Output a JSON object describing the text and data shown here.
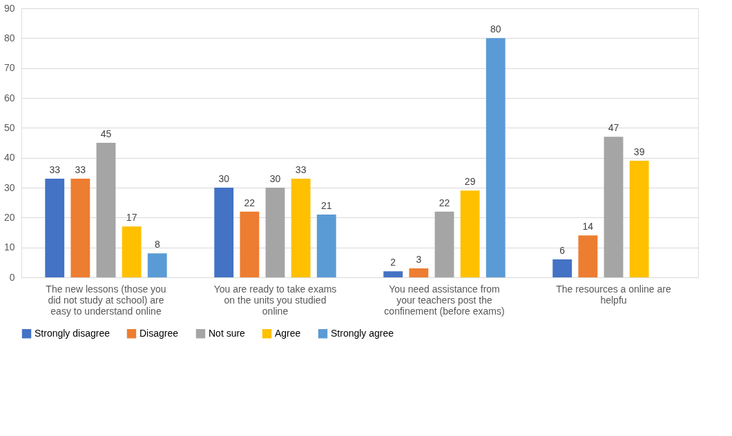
{
  "chart_data": {
    "type": "bar",
    "categories": [
      "The new lessons (those you did not study at school) are easy to understand online",
      "You are ready to take exams on the units you studied online",
      "You need assistance from your teachers post the confinement (before exams)",
      "The resources a online are helpfu"
    ],
    "series": [
      {
        "name": "Strongly disagree",
        "color": "#4472c4",
        "values": [
          33,
          30,
          2,
          6
        ]
      },
      {
        "name": "Disagree",
        "color": "#ed7d31",
        "values": [
          33,
          22,
          3,
          14
        ]
      },
      {
        "name": "Not sure",
        "color": "#a5a5a5",
        "values": [
          45,
          30,
          22,
          47
        ]
      },
      {
        "name": "Agree",
        "color": "#ffc000",
        "values": [
          17,
          33,
          29,
          39
        ]
      },
      {
        "name": "Strongly agree",
        "color": "#5b9bd5",
        "values": [
          8,
          21,
          80,
          null
        ]
      }
    ],
    "ylim": [
      0,
      90
    ],
    "yticks": [
      0,
      10,
      20,
      30,
      40,
      50,
      60,
      70,
      80,
      90
    ],
    "grid": "y",
    "legend": "bottom",
    "data_labels": true
  }
}
